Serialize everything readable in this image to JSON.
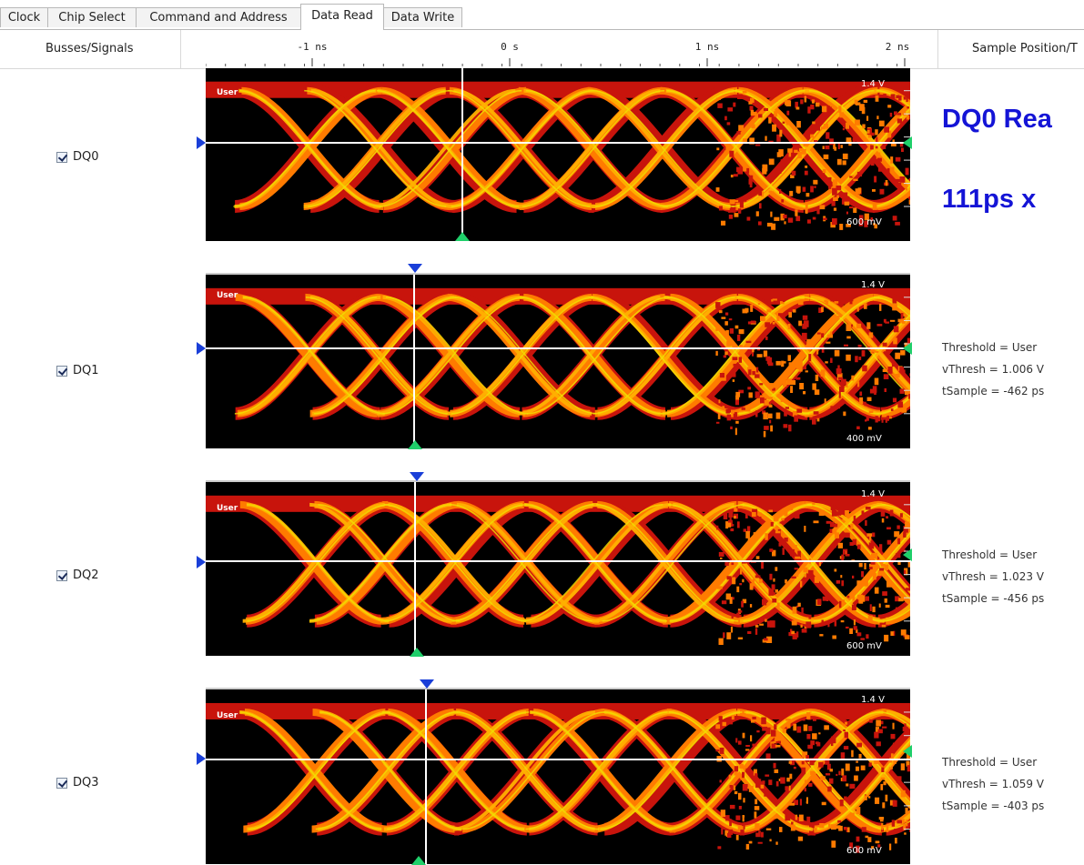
{
  "tabs": [
    "Clock",
    "Chip Select",
    "Command and Address",
    "Data Read",
    "Data Write"
  ],
  "active_tab": "Data Read",
  "header": {
    "busses_label": "Busses/Signals",
    "sample_label": "Sample Position/T",
    "ruler_ticks": [
      "-1 ns",
      "0 s",
      "1 ns",
      "2 ns"
    ]
  },
  "rows": [
    {
      "signal": "DQ0",
      "checked": true,
      "user_label": "User",
      "v_top": "1.4 V",
      "v_bottom": "600 mV",
      "big_title": "DQ0 Rea",
      "big_sub": "111ps x",
      "info": null
    },
    {
      "signal": "DQ1",
      "checked": true,
      "user_label": "User",
      "v_top": "1.4 V",
      "v_bottom": "400 mV",
      "info": [
        "Threshold = User",
        "vThresh = 1.006 V",
        "tSample = -462 ps"
      ]
    },
    {
      "signal": "DQ2",
      "checked": true,
      "user_label": "User",
      "v_top": "1.4 V",
      "v_bottom": "600 mV",
      "info": [
        "Threshold = User",
        "vThresh = 1.023 V",
        "tSample = -456 ps"
      ]
    },
    {
      "signal": "DQ3",
      "checked": true,
      "user_label": "User",
      "v_top": "1.4 V",
      "v_bottom": "600 mV",
      "info": [
        "Threshold = User",
        "vThresh = 1.059 V",
        "tSample = -403 ps"
      ]
    }
  ],
  "colors": {
    "eye_bg": "#000000",
    "eye_outer": "#c8140c",
    "eye_mid": "#ff7b00",
    "eye_core": "#ffb000",
    "eye_hot": "#f0e000",
    "marker_blue": "#1a3fd8",
    "marker_green": "#1fcf6a",
    "big_text": "#1414d6"
  }
}
